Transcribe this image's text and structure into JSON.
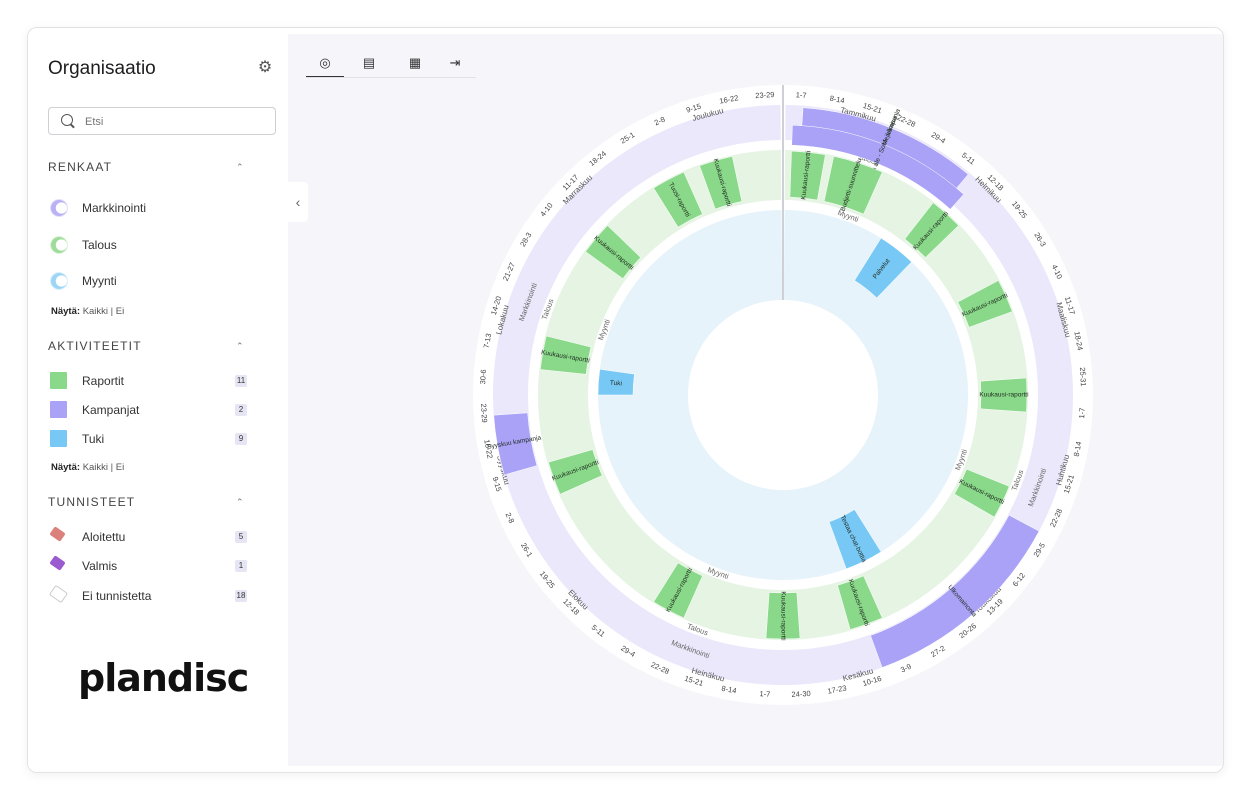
{
  "sidebar": {
    "title": "Organisaatio",
    "search_placeholder": "Etsi",
    "rings": {
      "heading": "RENKAAT",
      "items": [
        {
          "label": "Markkinointi",
          "color": "#b9b0f5"
        },
        {
          "label": "Talous",
          "color": "#9fdc9a"
        },
        {
          "label": "Myynti",
          "color": "#9dd6f5"
        }
      ],
      "show": {
        "prefix": "Näytä:",
        "all": "Kaikki",
        "sep": "|",
        "none": "Ei"
      }
    },
    "activities": {
      "heading": "AKTIVITEETIT",
      "items": [
        {
          "label": "Raportit",
          "count": "11",
          "color": "#8ad98a"
        },
        {
          "label": "Kampanjat",
          "count": "2",
          "color": "#a9a2f7"
        },
        {
          "label": "Tuki",
          "count": "9",
          "color": "#78c8f5"
        }
      ],
      "show": {
        "prefix": "Näytä:",
        "all": "Kaikki",
        "sep": "|",
        "none": "Ei"
      }
    },
    "tags": {
      "heading": "TUNNISTEET",
      "items": [
        {
          "label": "Aloitettu",
          "count": "5",
          "color": "#d9817a"
        },
        {
          "label": "Valmis",
          "count": "1",
          "color": "#9a5ad0"
        },
        {
          "label": "Ei tunnistetta",
          "count": "18",
          "color": "#e6e6ea"
        }
      ]
    },
    "logo": "plandisc"
  },
  "toolbar": {
    "views": [
      {
        "name": "circle-view",
        "icon": "◎"
      },
      {
        "name": "list-view",
        "icon": "▤"
      },
      {
        "name": "calendar-view",
        "icon": "▦"
      },
      {
        "name": "export-view",
        "icon": "⇥"
      }
    ]
  },
  "wheel": {
    "months": [
      "Tammikuu",
      "Helmikuu",
      "Maaliskuu",
      "Huhtikuu",
      "Toukokuu",
      "Kesäkuu",
      "Heinäkuu",
      "Elokuu",
      "Syyskuu",
      "Lokakuu",
      "Marraskuu",
      "Joulukuu"
    ],
    "weeks": [
      "1-7",
      "8-14",
      "15-21",
      "22-28",
      "29-4",
      "5-11",
      "12-18",
      "19-25",
      "26-3",
      "4-10",
      "11-17",
      "18-24",
      "25-31",
      "1-7",
      "8-14",
      "15-21",
      "22-28",
      "29-5",
      "6-12",
      "13-19",
      "20-26",
      "27-2",
      "3-9",
      "10-16",
      "17-23",
      "24-30",
      "1-7",
      "8-14",
      "15-21",
      "22-28",
      "29-4",
      "5-11",
      "12-18",
      "19-25",
      "26-1",
      "2-8",
      "9-15",
      "16-22",
      "23-29",
      "30-6",
      "7-13",
      "14-20",
      "21-27",
      "28-3",
      "4-10",
      "11-17",
      "18-24",
      "25-1",
      "2-8",
      "9-15",
      "16-22",
      "23-29"
    ],
    "ring_labels": {
      "outer": "Markkinointi",
      "middle": "Talous",
      "inner": "Myynti"
    },
    "events": [
      {
        "ring": "outer",
        "label": "E-book julkaisu",
        "color": "#a9a2f7"
      },
      {
        "ring": "outer",
        "label": "Tammikuun ale - SoMe kampanja",
        "color": "#a9a2f7"
      },
      {
        "ring": "outer",
        "label": "Syyskuu kampanja",
        "color": "#a9a2f7"
      },
      {
        "ring": "outer",
        "label": "Ulkomainonta",
        "color": "#a9a2f7"
      },
      {
        "ring": "middle",
        "label": "Kuukausi-raportti",
        "color": "#8ad98a"
      },
      {
        "ring": "middle",
        "label": "Budjetti-suunnittelu",
        "color": "#8ad98a"
      },
      {
        "ring": "middle",
        "label": "Tuosi-raportti",
        "color": "#8ad98a"
      },
      {
        "ring": "inner",
        "label": "Palvelut",
        "color": "#78c8f5"
      },
      {
        "ring": "inner",
        "label": "Tuki",
        "color": "#78c8f5"
      },
      {
        "ring": "inner",
        "label": "Testaa chat-bottia",
        "color": "#78c8f5"
      }
    ]
  }
}
